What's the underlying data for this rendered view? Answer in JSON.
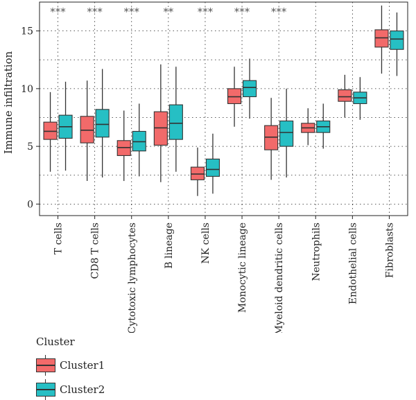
{
  "chart_data": {
    "type": "box",
    "ylabel": "Immune infiltration",
    "ylim": [
      -1,
      17.5
    ],
    "yticks": [
      0,
      5,
      10,
      15
    ],
    "grid": true,
    "categories": [
      "T cells",
      "CD8 T cells",
      "Cytotoxic lymphocytes",
      "B lineage",
      "NK cells",
      "Monocytic lineage",
      "Myeloid dendritic cells",
      "Neutrophils",
      "Endothelial cells",
      "Fibroblasts"
    ],
    "significance": [
      "***",
      "***",
      "***",
      "**",
      "***",
      "***",
      "***",
      "",
      "",
      ""
    ],
    "legend": {
      "title": "Cluster",
      "position": "bottom-left",
      "items": [
        {
          "label": "Cluster1",
          "color": "#f26a6a"
        },
        {
          "label": "Cluster2",
          "color": "#26bfc4"
        }
      ]
    },
    "series": [
      {
        "name": "Cluster1",
        "color": "#f26a6a",
        "boxes": [
          {
            "min": 2.8,
            "q1": 5.6,
            "median": 6.3,
            "q3": 7.1,
            "max": 9.7
          },
          {
            "min": 2.0,
            "q1": 5.3,
            "median": 6.4,
            "q3": 7.6,
            "max": 10.7
          },
          {
            "min": 2.0,
            "q1": 4.2,
            "median": 4.9,
            "q3": 5.5,
            "max": 8.1
          },
          {
            "min": 1.9,
            "q1": 5.1,
            "median": 6.6,
            "q3": 8.0,
            "max": 12.1
          },
          {
            "min": 0.7,
            "q1": 2.1,
            "median": 2.6,
            "q3": 3.2,
            "max": 4.9
          },
          {
            "min": 6.7,
            "q1": 8.7,
            "median": 9.3,
            "q3": 10.0,
            "max": 11.9
          },
          {
            "min": 2.1,
            "q1": 4.7,
            "median": 5.8,
            "q3": 6.8,
            "max": 9.2
          },
          {
            "min": 5.1,
            "q1": 6.2,
            "median": 6.6,
            "q3": 7.0,
            "max": 8.3
          },
          {
            "min": 7.5,
            "q1": 8.9,
            "median": 9.3,
            "q3": 9.9,
            "max": 11.2
          },
          {
            "min": 11.3,
            "q1": 13.6,
            "median": 14.4,
            "q3": 15.1,
            "max": 17.2
          }
        ]
      },
      {
        "name": "Cluster2",
        "color": "#26bfc4",
        "boxes": [
          {
            "min": 2.9,
            "q1": 5.7,
            "median": 6.7,
            "q3": 7.7,
            "max": 10.6
          },
          {
            "min": 2.3,
            "q1": 5.8,
            "median": 6.9,
            "q3": 8.2,
            "max": 11.7
          },
          {
            "min": 2.4,
            "q1": 4.6,
            "median": 5.4,
            "q3": 6.3,
            "max": 8.7
          },
          {
            "min": 2.8,
            "q1": 5.6,
            "median": 7.0,
            "q3": 8.6,
            "max": 11.9
          },
          {
            "min": 0.9,
            "q1": 2.4,
            "median": 3.0,
            "q3": 3.9,
            "max": 6.1
          },
          {
            "min": 7.4,
            "q1": 9.3,
            "median": 10.1,
            "q3": 10.7,
            "max": 12.6
          },
          {
            "min": 2.3,
            "q1": 5.0,
            "median": 6.2,
            "q3": 7.2,
            "max": 10.0
          },
          {
            "min": 4.8,
            "q1": 6.2,
            "median": 6.7,
            "q3": 7.2,
            "max": 8.7
          },
          {
            "min": 7.3,
            "q1": 8.7,
            "median": 9.2,
            "q3": 9.7,
            "max": 11.0
          },
          {
            "min": 11.1,
            "q1": 13.4,
            "median": 14.3,
            "q3": 15.0,
            "max": 16.6
          }
        ]
      }
    ]
  }
}
